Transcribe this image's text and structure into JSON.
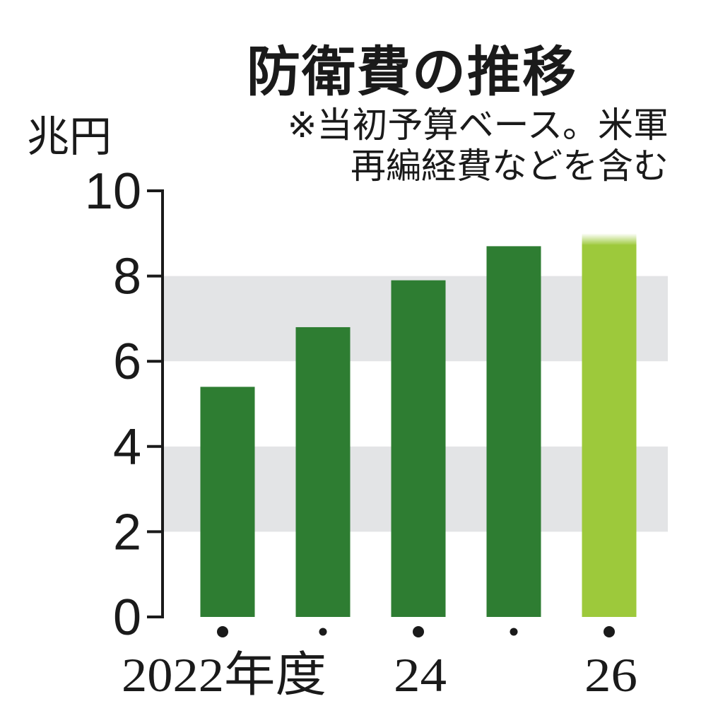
{
  "chart_data": {
    "type": "bar",
    "title": "防衛費の推移",
    "ylabel": "兆円",
    "note_lines": [
      "※当初予算ベース。米軍",
      "再編経費などを含む"
    ],
    "categories": [
      "2022",
      "2023",
      "2024",
      "2025",
      "2026"
    ],
    "x_tick_labels": [
      "2022年度",
      "",
      "24",
      "",
      "26"
    ],
    "values": [
      5.4,
      6.8,
      7.9,
      8.7,
      9.0
    ],
    "ylim": [
      0,
      10
    ],
    "yticks": [
      0,
      2,
      4,
      6,
      8,
      10
    ],
    "grid": "alternating bands",
    "colors": {
      "bar": "#2e7d32",
      "bar_highlight": "#9dc93b",
      "band": "#e3e4e6",
      "axis": "#1a1a1a"
    },
    "highlight_index": 4
  }
}
